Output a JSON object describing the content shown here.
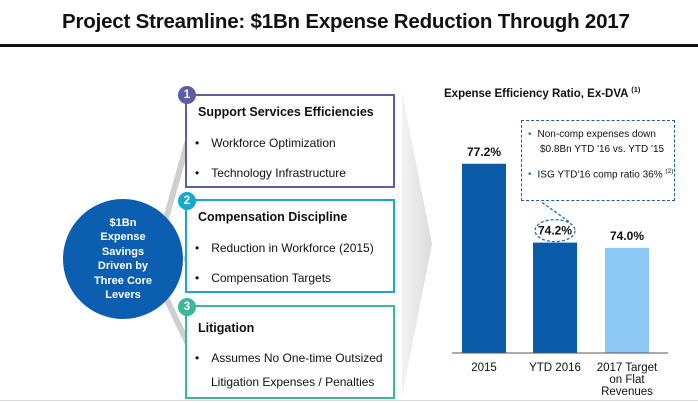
{
  "title": "Project Streamline: $1Bn Expense Reduction Through 2017",
  "center_text": "$1Bn\nExpense\nSavings\nDriven by\nThree Core\nLevers",
  "levers": [
    {
      "number": "1",
      "heading": "Support Services Efficiencies",
      "color": "#5b5ea6",
      "items": [
        "Workforce Optimization",
        "Technology Infrastructure"
      ]
    },
    {
      "number": "2",
      "heading": "Compensation Discipline",
      "color": "#1aa6cf",
      "items": [
        "Reduction in Workforce (2015)",
        "Compensation Targets"
      ]
    },
    {
      "number": "3",
      "heading": "Litigation",
      "color": "#39b89a",
      "items": [
        "Assumes No One-time Outsized",
        "Litigation Expenses / Penalties"
      ]
    }
  ],
  "callout": {
    "line1": "Non-comp expenses down",
    "line2": "$0.8Bn YTD '16 vs. YTD '15",
    "line3": "ISG YTD'16 comp ratio 36%",
    "line3_note": "(2)"
  },
  "chart_data": {
    "type": "bar",
    "title": "Expense Efficiency Ratio, Ex-DVA",
    "title_note": "(1)",
    "categories": [
      "2015",
      "YTD 2016",
      "2017 Target on Flat Revenues"
    ],
    "category_lines": [
      [
        "2015"
      ],
      [
        "YTD 2016"
      ],
      [
        "2017 Target",
        "on Flat",
        "Revenues"
      ]
    ],
    "values": [
      77.2,
      74.2,
      74.0
    ],
    "value_labels": [
      "77.2%",
      "74.2%",
      "74.0%"
    ],
    "colors": [
      "#0a5ba7",
      "#0a5ba7",
      "#8dc8f5"
    ],
    "ylim": [
      70,
      77.8
    ],
    "grid": false,
    "legend": "none"
  }
}
